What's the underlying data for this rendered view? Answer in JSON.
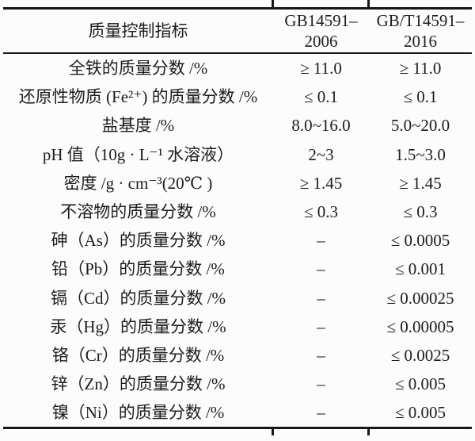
{
  "table": {
    "title_semantic": "quality-control-indicators-comparison",
    "header": {
      "indicator": "质量控制指标",
      "std_2006": "GB14591–\n2006",
      "std_2016": "GB/T14591–\n2016"
    },
    "rows": [
      {
        "label": "全铁的质量分数 /%",
        "v2006": "≥ 11.0",
        "v2016": "≥ 11.0"
      },
      {
        "label": "还原性物质 (Fe²⁺) 的质量分数 /%",
        "v2006": "≤ 0.1",
        "v2016": "≤ 0.1"
      },
      {
        "label": "盐基度 /%",
        "v2006": "8.0~16.0",
        "v2016": "5.0~20.0"
      },
      {
        "label": "pH 值（10g · L⁻¹ 水溶液）",
        "v2006": "2~3",
        "v2016": "1.5~3.0"
      },
      {
        "label": "密度 /g · cm⁻³(20℃ )",
        "v2006": "≥ 1.45",
        "v2016": "≥ 1.45"
      },
      {
        "label": "不溶物的质量分数 /%",
        "v2006": "≤ 0.3",
        "v2016": "≤ 0.3"
      },
      {
        "label": "砷（As）的质量分数 /%",
        "v2006": "–",
        "v2016": "≤ 0.0005"
      },
      {
        "label": "铅（Pb）的质量分数 /%",
        "v2006": "–",
        "v2016": "≤ 0.001"
      },
      {
        "label": "镉（Cd）的质量分数 /%",
        "v2006": "–",
        "v2016": "≤ 0.00025"
      },
      {
        "label": "汞（Hg）的质量分数 /%",
        "v2006": "–",
        "v2016": "≤ 0.00005"
      },
      {
        "label": "铬（Cr）的质量分数 /%",
        "v2006": "–",
        "v2016": "≤ 0.0025"
      },
      {
        "label": "锌（Zn）的质量分数 /%",
        "v2006": "–",
        "v2016": "≤ 0.005"
      },
      {
        "label": "镍（Ni）的质量分数 /%",
        "v2006": "–",
        "v2016": "≤ 0.005"
      }
    ]
  }
}
